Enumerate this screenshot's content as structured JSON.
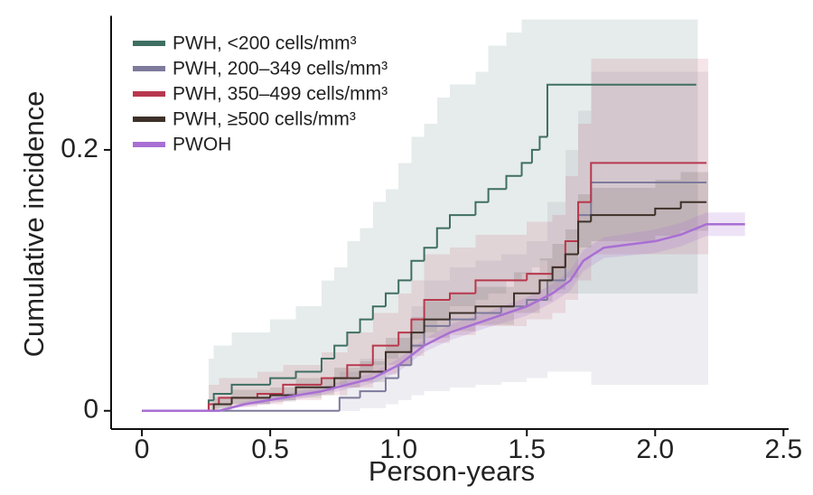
{
  "chart_data": {
    "type": "step",
    "xlabel": "Person-years",
    "ylabel": "Cumulative incidence",
    "xlim": [
      -0.12,
      2.52
    ],
    "ylim": [
      -0.014,
      0.3
    ],
    "xticks": [
      0,
      0.5,
      {
        "value": 1,
        "label": "1.0"
      },
      1.5,
      {
        "value": 2,
        "label": "2.0"
      },
      2.5
    ],
    "yticks": [
      0,
      0.2
    ],
    "legend": "upper left",
    "series": [
      {
        "name": "PWH, <200 cells/mm³",
        "color": "#3f6e62",
        "step": true,
        "x": [
          0,
          0.26,
          0.28,
          0.35,
          0.5,
          0.6,
          0.7,
          0.75,
          0.8,
          0.85,
          0.9,
          0.95,
          1.0,
          1.05,
          1.1,
          1.15,
          1.2,
          1.3,
          1.35,
          1.42,
          1.48,
          1.52,
          1.55,
          1.58,
          2.16
        ],
        "values": [
          0,
          0.008,
          0.013,
          0.02,
          0.025,
          0.03,
          0.04,
          0.05,
          0.06,
          0.07,
          0.08,
          0.09,
          0.1,
          0.115,
          0.125,
          0.14,
          0.15,
          0.16,
          0.17,
          0.18,
          0.19,
          0.2,
          0.21,
          0.25,
          0.25
        ],
        "lower": [
          0,
          0,
          0.002,
          0.005,
          0.008,
          0.01,
          0.015,
          0.02,
          0.025,
          0.03,
          0.035,
          0.04,
          0.045,
          0.055,
          0.06,
          0.07,
          0.08,
          0.085,
          0.09,
          0.1,
          0.105,
          0.11,
          0.115,
          0.09,
          0.09
        ],
        "upper": [
          0,
          0.04,
          0.05,
          0.06,
          0.07,
          0.08,
          0.1,
          0.11,
          0.13,
          0.14,
          0.16,
          0.17,
          0.19,
          0.21,
          0.22,
          0.24,
          0.25,
          0.26,
          0.28,
          0.29,
          0.3,
          0.3,
          0.3,
          0.3,
          0.3
        ]
      },
      {
        "name": "PWH, 200–349 cells/mm³",
        "color": "#7d7a9c",
        "step": true,
        "x": [
          0,
          0.77,
          0.85,
          0.95,
          1.0,
          1.05,
          1.1,
          1.2,
          1.3,
          1.4,
          1.5,
          1.58,
          1.65,
          1.7,
          1.75,
          2.2
        ],
        "values": [
          0,
          0.01,
          0.015,
          0.025,
          0.035,
          0.05,
          0.065,
          0.07,
          0.075,
          0.08,
          0.085,
          0.1,
          0.12,
          0.15,
          0.175,
          0.175
        ],
        "lower": [
          0,
          0,
          0.002,
          0.005,
          0.008,
          0.012,
          0.015,
          0.018,
          0.02,
          0.022,
          0.025,
          0.03,
          0.03,
          0.03,
          0.02,
          0.02
        ],
        "upper": [
          0,
          0.03,
          0.04,
          0.05,
          0.06,
          0.08,
          0.1,
          0.11,
          0.115,
          0.12,
          0.13,
          0.16,
          0.2,
          0.23,
          0.26,
          0.26
        ]
      },
      {
        "name": "PWH, 350–499 cells/mm³",
        "color": "#b8384e",
        "step": true,
        "x": [
          0,
          0.26,
          0.3,
          0.45,
          0.55,
          0.7,
          0.8,
          0.9,
          1.0,
          1.05,
          1.1,
          1.2,
          1.3,
          1.5,
          1.6,
          1.65,
          1.7,
          1.75,
          2.2
        ],
        "values": [
          0,
          0.005,
          0.01,
          0.013,
          0.02,
          0.025,
          0.035,
          0.05,
          0.06,
          0.07,
          0.085,
          0.09,
          0.1,
          0.105,
          0.11,
          0.13,
          0.16,
          0.19,
          0.19
        ],
        "lower": [
          0,
          0,
          0.003,
          0.005,
          0.008,
          0.012,
          0.018,
          0.028,
          0.035,
          0.042,
          0.052,
          0.058,
          0.065,
          0.07,
          0.075,
          0.085,
          0.1,
          0.12,
          0.12
        ],
        "upper": [
          0,
          0.02,
          0.025,
          0.03,
          0.035,
          0.045,
          0.06,
          0.075,
          0.09,
          0.1,
          0.12,
          0.125,
          0.135,
          0.145,
          0.15,
          0.18,
          0.22,
          0.27,
          0.27
        ]
      },
      {
        "name": "PWH, ≥500 cells/mm³",
        "color": "#3d3129",
        "step": true,
        "x": [
          0,
          0.28,
          0.35,
          0.5,
          0.6,
          0.75,
          0.85,
          0.95,
          1.05,
          1.1,
          1.2,
          1.3,
          1.45,
          1.55,
          1.6,
          1.65,
          1.7,
          1.75,
          2.0,
          2.1,
          2.2
        ],
        "values": [
          0,
          0.005,
          0.01,
          0.012,
          0.018,
          0.025,
          0.03,
          0.045,
          0.06,
          0.07,
          0.075,
          0.08,
          0.09,
          0.1,
          0.11,
          0.12,
          0.145,
          0.15,
          0.155,
          0.16,
          0.16
        ],
        "lower": [
          0,
          0,
          0.005,
          0.007,
          0.012,
          0.018,
          0.022,
          0.035,
          0.048,
          0.056,
          0.061,
          0.066,
          0.075,
          0.084,
          0.093,
          0.102,
          0.125,
          0.13,
          0.134,
          0.138,
          0.138
        ],
        "upper": [
          0,
          0.01,
          0.016,
          0.018,
          0.025,
          0.033,
          0.038,
          0.056,
          0.072,
          0.084,
          0.09,
          0.095,
          0.106,
          0.117,
          0.128,
          0.139,
          0.166,
          0.171,
          0.177,
          0.183,
          0.183
        ]
      },
      {
        "name": "PWOH",
        "color": "#a86fd4",
        "step": false,
        "x": [
          0,
          0.3,
          0.4,
          0.55,
          0.7,
          0.9,
          1.0,
          1.1,
          1.2,
          1.35,
          1.5,
          1.6,
          1.67,
          1.72,
          1.8,
          2.0,
          2.1,
          2.2,
          2.35
        ],
        "values": [
          0,
          0,
          0.005,
          0.01,
          0.015,
          0.025,
          0.035,
          0.05,
          0.06,
          0.07,
          0.08,
          0.09,
          0.1,
          0.115,
          0.125,
          0.13,
          0.135,
          0.143,
          0.143
        ],
        "lower": [
          0,
          0,
          0.003,
          0.007,
          0.012,
          0.021,
          0.03,
          0.045,
          0.054,
          0.064,
          0.073,
          0.083,
          0.092,
          0.107,
          0.117,
          0.121,
          0.126,
          0.134,
          0.134
        ],
        "upper": [
          0,
          0,
          0.007,
          0.013,
          0.018,
          0.029,
          0.04,
          0.055,
          0.066,
          0.076,
          0.087,
          0.097,
          0.108,
          0.123,
          0.133,
          0.139,
          0.144,
          0.152,
          0.152
        ]
      }
    ]
  }
}
